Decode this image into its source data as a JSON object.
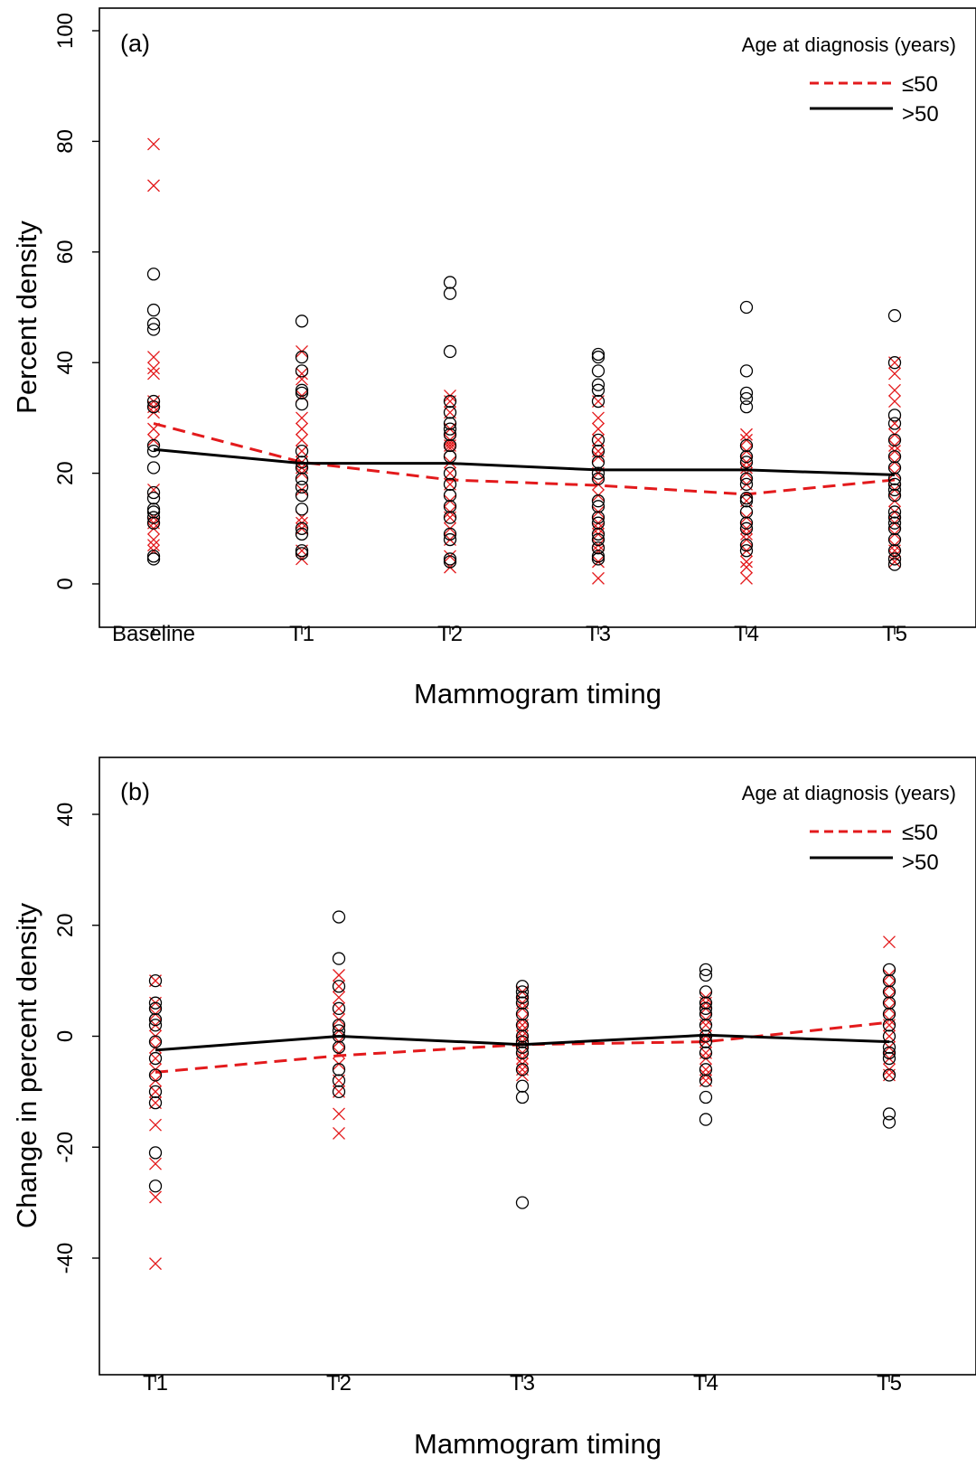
{
  "chart_data": [
    {
      "type": "scatter",
      "panel_label": "(a)",
      "xlabel": "Mammogram timing",
      "ylabel": "Percent density",
      "categories": [
        "Baseline",
        "T1",
        "T2",
        "T3",
        "T4",
        "T5"
      ],
      "ylim": [
        0,
        100
      ],
      "yticks": [
        "0",
        "20",
        "40",
        "60",
        "80",
        "100"
      ],
      "ytick_values": [
        0,
        20,
        40,
        60,
        80,
        100
      ],
      "grid": false,
      "legend": {
        "title": "Age at diagnosis (years)",
        "position": "top-right",
        "entries": [
          {
            "label": "≤50",
            "color": "#e31a1c",
            "style": "dashed"
          },
          {
            "label": ">50",
            "color": "#000000",
            "style": "solid"
          }
        ]
      },
      "series": [
        {
          "name": "≤50",
          "color": "#e31a1c",
          "marker": "x",
          "line": "dashed",
          "means": [
            29,
            22,
            18.8,
            17.8,
            16.2,
            18.8
          ],
          "points": [
            [
              79.5,
              72,
              41,
              39,
              38,
              33,
              32,
              31,
              28,
              26,
              17,
              12,
              11,
              10,
              8,
              7,
              6
            ],
            [
              42,
              38,
              37,
              34,
              30,
              28,
              26,
              24,
              22,
              21,
              20,
              17,
              12,
              11,
              10,
              6,
              4.5
            ],
            [
              34,
              33,
              31,
              28,
              26,
              25.5,
              25,
              24.5,
              22,
              20,
              18,
              15,
              13,
              12,
              10,
              8,
              5,
              3
            ],
            [
              33,
              30,
              28,
              26,
              24,
              23,
              20,
              18,
              16,
              13,
              11,
              10,
              9,
              7,
              6,
              4,
              1
            ],
            [
              27,
              26,
              24,
              22,
              21,
              20,
              18,
              15,
              12,
              10,
              9,
              8,
              6,
              4,
              3,
              1
            ],
            [
              40,
              38,
              35,
              33,
              29,
              27,
              25,
              24,
              22,
              20,
              17,
              15,
              13,
              11,
              9,
              7,
              6,
              5,
              4
            ]
          ]
        },
        {
          "name": ">50",
          "color": "#000000",
          "marker": "o",
          "line": "solid",
          "means": [
            24.3,
            21.8,
            21.8,
            20.6,
            20.6,
            19.7
          ],
          "points": [
            [
              56,
              49.5,
              47,
              46,
              33,
              32,
              25,
              24,
              21,
              16.5,
              15.5,
              13.5,
              13,
              12,
              11,
              5,
              4.5
            ],
            [
              47.5,
              41,
              38.5,
              35,
              34.5,
              32.5,
              24,
              22,
              21,
              19,
              17.5,
              16,
              13.5,
              10,
              9,
              6,
              5.5
            ],
            [
              54.5,
              52.5,
              42,
              33,
              31,
              29,
              28,
              27,
              25,
              23,
              20,
              18,
              16,
              14,
              12,
              9,
              8,
              4.5,
              4
            ],
            [
              41.5,
              41,
              38.5,
              36,
              35,
              33,
              26,
              24,
              22,
              20,
              19,
              15,
              14,
              12,
              11,
              9,
              8,
              6.5,
              5,
              4.5
            ],
            [
              50,
              38.5,
              34.5,
              33.5,
              32,
              25,
              23,
              22,
              19,
              18,
              15.5,
              15,
              13,
              11,
              10,
              7,
              6
            ],
            [
              48.5,
              40,
              30.5,
              29,
              26,
              23,
              21,
              19,
              18,
              17,
              16,
              13,
              12,
              11,
              10,
              8,
              6,
              4.5,
              3.5
            ]
          ]
        }
      ]
    },
    {
      "type": "scatter",
      "panel_label": "(b)",
      "xlabel": "Mammogram timing",
      "ylabel": "Change in percent density",
      "categories": [
        "T1",
        "T2",
        "T3",
        "T4",
        "T5"
      ],
      "ylim": [
        -54,
        54
      ],
      "yticks": [
        "-40",
        "-20",
        "0",
        "20",
        "40"
      ],
      "ytick_values": [
        -40,
        -20,
        0,
        20,
        40
      ],
      "grid": false,
      "legend": {
        "title": "Age at diagnosis (years)",
        "position": "top-right",
        "entries": [
          {
            "label": "≤50",
            "color": "#e31a1c",
            "style": "dashed"
          },
          {
            "label": ">50",
            "color": "#000000",
            "style": "solid"
          }
        ]
      },
      "series": [
        {
          "name": "≤50",
          "color": "#e31a1c",
          "marker": "x",
          "line": "dashed",
          "means": [
            -6.5,
            -3.5,
            -1.5,
            -1,
            2.5
          ],
          "points": [
            [
              10,
              6,
              4,
              2,
              0,
              -2,
              -4,
              -6,
              -8,
              -10,
              -12,
              -16,
              -23,
              -29,
              -41
            ],
            [
              11,
              9,
              7,
              5,
              3,
              1,
              -1,
              -3,
              -5,
              -8,
              -10,
              -14,
              -17.5
            ],
            [
              8,
              6,
              5,
              3,
              2,
              1,
              0,
              -1,
              -3,
              -4,
              -5,
              -6,
              -7
            ],
            [
              7,
              6,
              5,
              3,
              2,
              0,
              -1,
              -3,
              -4,
              -6,
              -7,
              -8
            ],
            [
              17,
              11,
              9,
              7,
              5,
              3,
              2,
              0,
              -2,
              -4,
              -6,
              -7
            ]
          ]
        },
        {
          "name": ">50",
          "color": "#000000",
          "marker": "o",
          "line": "solid",
          "means": [
            -2.5,
            0,
            -1.5,
            0.2,
            -1
          ],
          "points": [
            [
              10,
              6,
              5,
              3,
              2,
              -1,
              -4,
              -7,
              -10,
              -12,
              -21,
              -27
            ],
            [
              21.5,
              14,
              9,
              5,
              2,
              1,
              0,
              -2,
              -6,
              -8,
              -10
            ],
            [
              9,
              8,
              7,
              6,
              4,
              2,
              0,
              -1,
              -2,
              -3,
              -6,
              -9,
              -11,
              -30
            ],
            [
              12,
              11,
              8,
              6,
              5,
              4,
              2,
              0,
              -1,
              -3,
              -6,
              -8,
              -11,
              -15
            ],
            [
              12,
              10,
              8,
              6,
              4,
              2,
              0,
              -2,
              -3,
              -4,
              -7,
              -14,
              -15.5
            ]
          ]
        }
      ]
    }
  ]
}
